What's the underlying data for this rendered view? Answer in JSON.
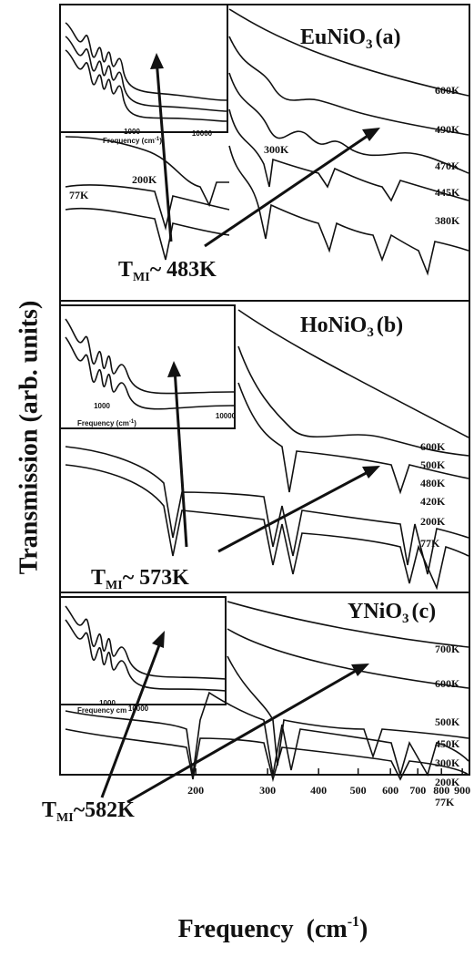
{
  "y_label": "Transmission (arb. units)",
  "x_label": {
    "text": "Frequency",
    "unit_open": "(cm",
    "unit_sup": "-1",
    "unit_close": ")"
  },
  "axis": {
    "scale": "log",
    "xlim": [
      93,
      937
    ],
    "xticks": [
      200,
      300,
      400,
      500,
      600,
      700,
      800,
      900
    ]
  },
  "panels": [
    {
      "compound": "EuNiO",
      "compound_sub": "3",
      "letter": "(a)",
      "tmi_symbol": "T",
      "tmi_sub": "MI",
      "tmi_value": "~ 483K",
      "temperatures": [
        "600K",
        "490K",
        "470K",
        "445K",
        "380K"
      ],
      "inset_temperatures": [
        "300K",
        "200K",
        "77K"
      ],
      "inset_axis_label": "Frequency (cm",
      "inset_axis_sup": "-1",
      "inset_axis_close": ")",
      "inset_ticks": [
        "1000",
        "10000"
      ]
    },
    {
      "compound": "HoNiO",
      "compound_sub": "3",
      "letter": "(b)",
      "tmi_symbol": "T",
      "tmi_sub": "MI",
      "tmi_value": "~ 573K",
      "temperatures": [
        "600K",
        "500K",
        "480K",
        "420K",
        "200K",
        "77K"
      ],
      "inset_temperatures": [],
      "inset_axis_label": "Frequency (cm",
      "inset_axis_sup": "-1",
      "inset_axis_close": ")",
      "inset_ticks": [
        "1000",
        "10000"
      ]
    },
    {
      "compound": "YNiO",
      "compound_sub": "3",
      "letter": "(c)",
      "tmi_symbol": "T",
      "tmi_sub": "MI",
      "tmi_value": "~582K",
      "temperatures": [
        "700K",
        "600K",
        "500K",
        "450K",
        "300K",
        "200K",
        "77K"
      ],
      "inset_temperatures": [],
      "inset_axis_label": "Frequency cm",
      "inset_axis_sup": "",
      "inset_axis_close": "",
      "inset_ticks": [
        "1000",
        "10000"
      ]
    }
  ]
}
